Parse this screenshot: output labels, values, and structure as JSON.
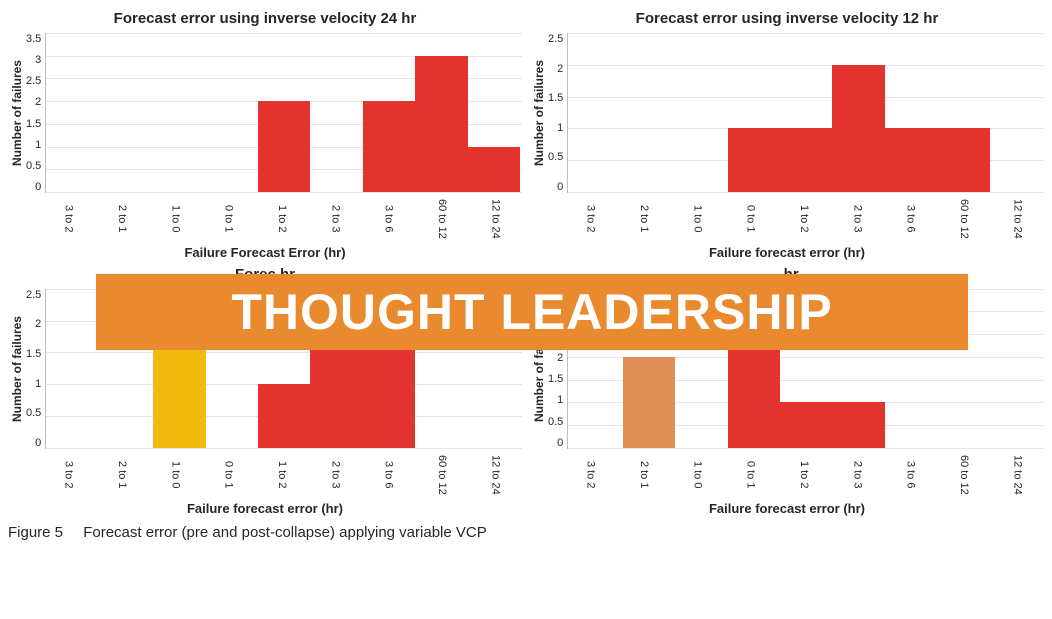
{
  "caption": {
    "figNum": "Figure 5",
    "text": "Forecast error (pre and post-collapse) applying variable VCP"
  },
  "banner": {
    "text": "THOUGHT LEADERSHIP",
    "bg": "#e98a2e",
    "fg": "#ffffff"
  },
  "shared": {
    "ylabel": "Number of failures",
    "xlabel_a": "Failure Forecast Error (hr)",
    "xlabel_b": "Failure forecast error (hr)",
    "categories": [
      "3 to 2",
      "2 to 1",
      "1 to 0",
      "0 to 1",
      "1 to 2",
      "2 to 3",
      "3 to 6",
      "60 to 12",
      "12 to 24"
    ],
    "grid_color": "#e6e6e6",
    "default_bar_color": "#e3342f",
    "axis_color": "#bfbfbf",
    "bg": "#ffffff",
    "title_fontsize": 15,
    "label_fontsize": 13,
    "tick_fontsize": 11,
    "bar_width": 1.0
  },
  "charts": [
    {
      "id": "tl",
      "type": "bar",
      "title": "Forecast error using inverse velocity 24 hr",
      "xlabel_key": "xlabel_a",
      "ymax": 3.5,
      "ytick_step": 0.5,
      "yticks": [
        "3.5",
        "3",
        "2.5",
        "2",
        "1.5",
        "1",
        "0.5",
        "0"
      ],
      "values": [
        0,
        0,
        0,
        0,
        2,
        0,
        2,
        3,
        1
      ],
      "colors": [
        "#e3342f",
        "#e3342f",
        "#e3342f",
        "#e3342f",
        "#e3342f",
        "#e3342f",
        "#e3342f",
        "#e3342f",
        "#e3342f"
      ]
    },
    {
      "id": "tr",
      "type": "bar",
      "title": "Forecast error using inverse velocity 12 hr",
      "xlabel_key": "xlabel_b",
      "ymax": 2.5,
      "ytick_step": 0.5,
      "yticks": [
        "2.5",
        "2",
        "1.5",
        "1",
        "0.5",
        "0"
      ],
      "values": [
        0,
        0,
        0,
        1,
        1,
        2,
        1,
        1,
        0
      ],
      "colors": [
        "#e3342f",
        "#e3342f",
        "#e3342f",
        "#e3342f",
        "#e3342f",
        "#e3342f",
        "#e3342f",
        "#e3342f",
        "#e3342f"
      ]
    },
    {
      "id": "bl",
      "type": "bar",
      "title": "Forec                                                                                         hr",
      "xlabel_key": "xlabel_b",
      "ymax": 2.5,
      "ytick_step": 0.5,
      "yticks": [
        "2.5",
        "2",
        "1.5",
        "1",
        "0.5",
        "0"
      ],
      "values": [
        0,
        0,
        2,
        0,
        1,
        2,
        2,
        0,
        0
      ],
      "colors": [
        "#e3342f",
        "#e3342f",
        "#f2b90f",
        "#e3342f",
        "#e3342f",
        "#e3342f",
        "#e3342f",
        "#e3342f",
        "#e3342f"
      ]
    },
    {
      "id": "br",
      "type": "bar",
      "title": ".  hr",
      "xlabel_key": "xlabel_b",
      "ymax": 3.5,
      "ytick_step": 0.5,
      "yticks": [
        "3.5",
        "3",
        "2.5",
        "2",
        "1.5",
        "1",
        "0.5",
        "0"
      ],
      "values": [
        0,
        2,
        0,
        3,
        1,
        1,
        0,
        0,
        0
      ],
      "colors": [
        "#e3342f",
        "#de8e56",
        "#e3342f",
        "#e3342f",
        "#e3342f",
        "#e3342f",
        "#e3342f",
        "#e3342f",
        "#e3342f"
      ]
    }
  ]
}
